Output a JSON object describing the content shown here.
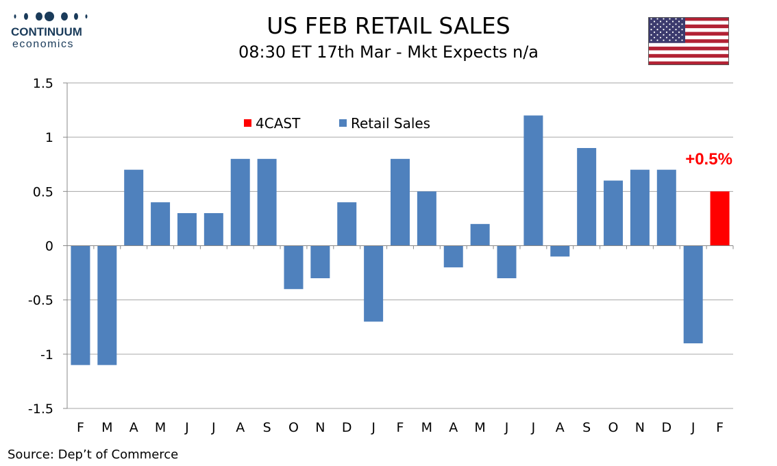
{
  "logo": {
    "name": "CONTINUUM",
    "sub": "economics"
  },
  "title": "US FEB RETAIL SALES",
  "subtitle": "08:30 ET 17th Mar - Mkt Expects n/a",
  "source": "Source: Dep’t of Commerce",
  "colors": {
    "retail": "#4f81bd",
    "forecast": "#ff0000",
    "grid": "#a6a6a6",
    "logo": "#1a3b5a"
  },
  "chart_data": {
    "type": "bar",
    "categories": [
      "F",
      "M",
      "A",
      "M",
      "J",
      "J",
      "A",
      "S",
      "O",
      "N",
      "D",
      "J",
      "F",
      "M",
      "A",
      "M",
      "J",
      "J",
      "A",
      "S",
      "O",
      "N",
      "D",
      "J",
      "F"
    ],
    "series": [
      {
        "name": "Retail Sales",
        "values": [
          -1.1,
          -1.1,
          0.7,
          0.4,
          0.3,
          0.3,
          0.8,
          0.8,
          -0.4,
          -0.3,
          0.4,
          -0.7,
          0.8,
          0.5,
          -0.2,
          0.2,
          -0.3,
          1.2,
          -0.1,
          0.9,
          0.6,
          0.7,
          0.7,
          -0.9,
          null
        ]
      },
      {
        "name": "4CAST",
        "values": [
          null,
          null,
          null,
          null,
          null,
          null,
          null,
          null,
          null,
          null,
          null,
          null,
          null,
          null,
          null,
          null,
          null,
          null,
          null,
          null,
          null,
          null,
          null,
          null,
          0.5
        ]
      }
    ],
    "ylim": [
      -1.5,
      1.5
    ],
    "yticks": [
      "1.5",
      "1",
      "0.5",
      "0",
      "-0.5",
      "-1",
      "-1.5"
    ],
    "grid": true,
    "legend": "top-center",
    "annotation": "+0.5%"
  }
}
